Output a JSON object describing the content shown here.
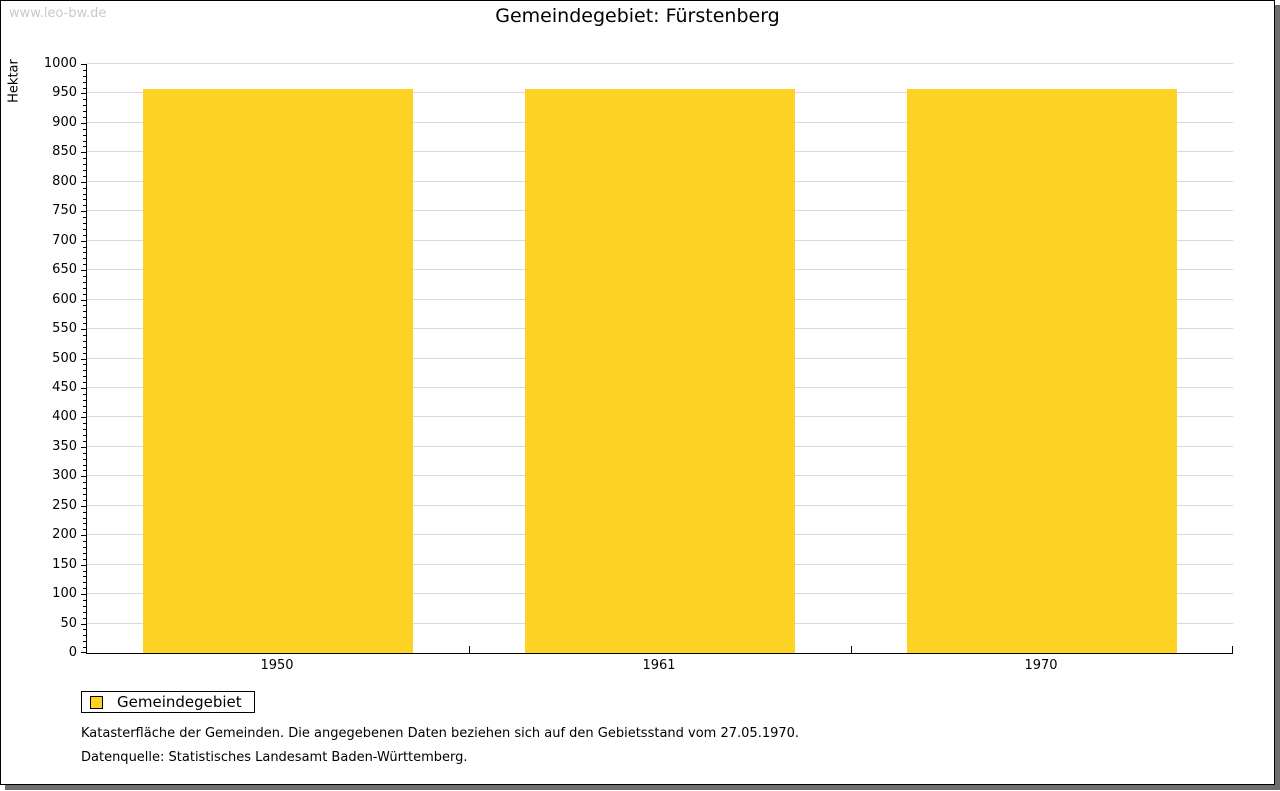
{
  "watermark": "www.leo-bw.de",
  "title": "Gemeindegebiet: Fürstenberg",
  "legend": {
    "label": "Gemeindegebiet"
  },
  "notes": [
    "Katasterfläche der Gemeinden. Die angegebenen Daten beziehen sich auf den Gebietsstand vom 27.05.1970.",
    "Datenquelle: Statistisches Landesamt Baden-Württemberg."
  ],
  "chart_data": {
    "type": "bar",
    "title": "Gemeindegebiet: Fürstenberg",
    "categories": [
      "1950",
      "1961",
      "1970"
    ],
    "series": [
      {
        "name": "Gemeindegebiet",
        "color": "#fcd225",
        "values": [
          958,
          958,
          958
        ]
      }
    ],
    "unit": "Hektar",
    "xlabel": "",
    "ylabel": "Hektar",
    "ylim": [
      0,
      1000
    ],
    "ytick_major": 50,
    "ytick_minor": 10,
    "grid": true,
    "gridline_color": "#d9d9d9",
    "legend_position": "bottom-left"
  },
  "colors": {
    "bar": "#fcd225",
    "frame_shadow": "#6e6e6e",
    "watermark": "#c9c9c9",
    "gridline": "#d9d9d9",
    "axis": "#000000"
  }
}
